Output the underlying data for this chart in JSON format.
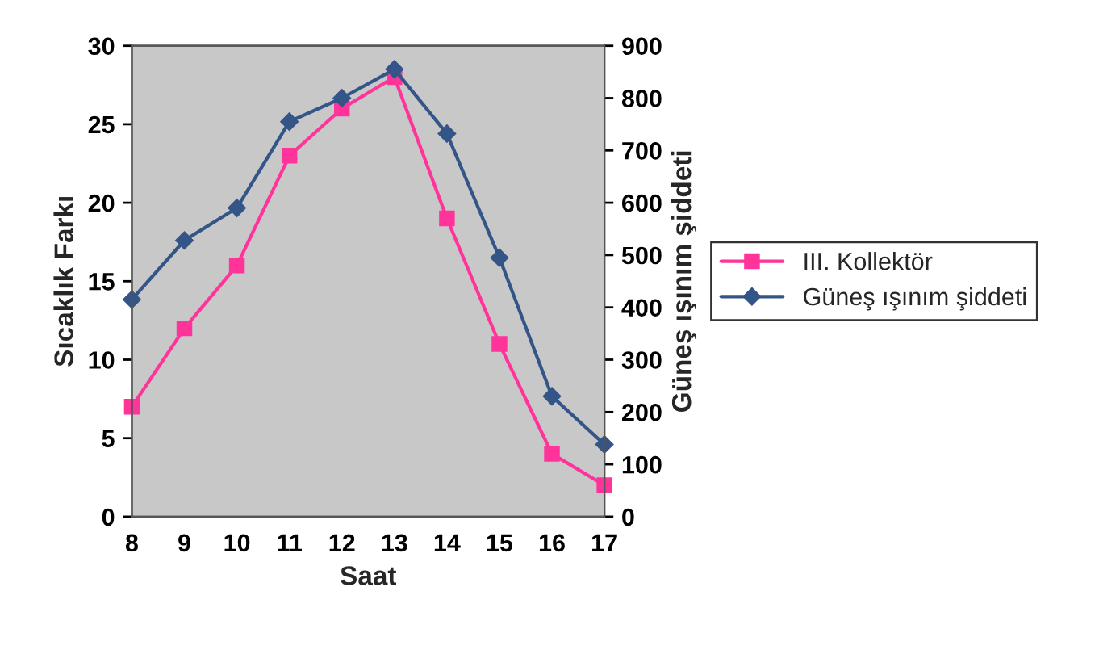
{
  "chart_data": {
    "type": "line",
    "xlabel": "Saat",
    "ylabel": "Sıcaklık Farkı",
    "y2label": "Güneş ışınım şiddeti",
    "x": [
      8,
      9,
      10,
      11,
      12,
      13,
      14,
      15,
      16,
      17
    ],
    "xlim": [
      8,
      17
    ],
    "xticks": [
      8,
      9,
      10,
      11,
      12,
      13,
      14,
      15,
      16,
      17
    ],
    "ylim": [
      0,
      30
    ],
    "yticks": [
      0,
      5,
      10,
      15,
      20,
      25,
      30
    ],
    "y2lim": [
      0,
      900
    ],
    "y2ticks": [
      0,
      100,
      200,
      300,
      400,
      500,
      600,
      700,
      800,
      900
    ],
    "series": [
      {
        "name": "III. Kollektör",
        "color": "#ff3399",
        "marker": "square",
        "values": [
          7,
          12,
          16,
          23,
          26,
          28,
          19,
          11,
          4,
          2
        ]
      },
      {
        "name": "Güneş ışınım şiddeti",
        "color": "#335588",
        "marker": "diamond",
        "axis": "y2",
        "values": [
          415,
          528,
          590,
          755,
          800,
          855,
          732,
          495,
          230,
          138
        ]
      }
    ],
    "grid": false,
    "legend": "right"
  }
}
